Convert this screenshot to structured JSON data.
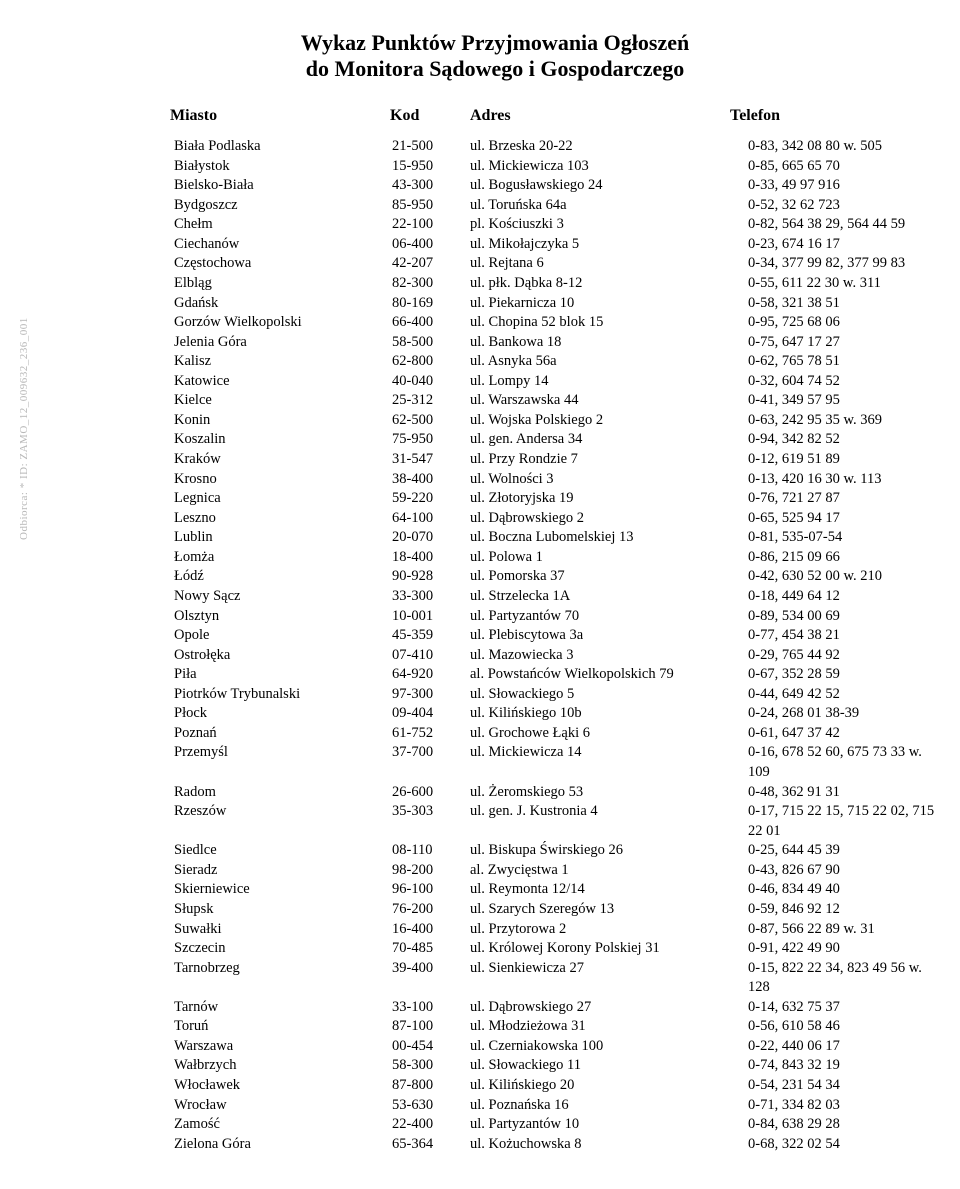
{
  "title_line1": "Wykaz Punktów Przyjmowania Ogłoszeń",
  "title_line2": "do Monitora Sądowego i Gospodarczego",
  "side_text": "Odbiorca: * ID: ZAMO_12_009632_236_001",
  "headers": {
    "city": "Miasto",
    "code": "Kod",
    "address": "Adres",
    "phone": "Telefon"
  },
  "rows": [
    {
      "city": "Biała Podlaska",
      "code": "21-500",
      "addr": "ul. Brzeska 20-22",
      "phone": "0-83, 342 08 80 w. 505"
    },
    {
      "city": "Białystok",
      "code": "15-950",
      "addr": "ul. Mickiewicza 103",
      "phone": "0-85, 665 65 70"
    },
    {
      "city": "Bielsko-Biała",
      "code": "43-300",
      "addr": "ul. Bogusławskiego 24",
      "phone": "0-33, 49 97 916"
    },
    {
      "city": "Bydgoszcz",
      "code": "85-950",
      "addr": "ul. Toruńska 64a",
      "phone": "0-52, 32 62 723"
    },
    {
      "city": "Chełm",
      "code": "22-100",
      "addr": "pl. Kościuszki 3",
      "phone": "0-82, 564 38 29, 564 44 59"
    },
    {
      "city": "Ciechanów",
      "code": "06-400",
      "addr": "ul. Mikołajczyka 5",
      "phone": "0-23, 674 16 17"
    },
    {
      "city": "Częstochowa",
      "code": "42-207",
      "addr": "ul. Rejtana 6",
      "phone": "0-34, 377 99 82, 377 99 83"
    },
    {
      "city": "Elbląg",
      "code": "82-300",
      "addr": "ul. płk. Dąbka 8-12",
      "phone": "0-55, 611 22 30 w. 311"
    },
    {
      "city": "Gdańsk",
      "code": "80-169",
      "addr": "ul. Piekarnicza 10",
      "phone": "0-58, 321 38 51"
    },
    {
      "city": "Gorzów Wielkopolski",
      "code": "66-400",
      "addr": "ul. Chopina 52 blok 15",
      "phone": "0-95, 725 68 06"
    },
    {
      "city": "Jelenia Góra",
      "code": "58-500",
      "addr": "ul. Bankowa 18",
      "phone": "0-75, 647 17 27"
    },
    {
      "city": "Kalisz",
      "code": "62-800",
      "addr": "ul. Asnyka 56a",
      "phone": "0-62, 765 78 51"
    },
    {
      "city": "Katowice",
      "code": "40-040",
      "addr": "ul. Lompy 14",
      "phone": "0-32, 604 74 52"
    },
    {
      "city": "Kielce",
      "code": "25-312",
      "addr": "ul. Warszawska 44",
      "phone": "0-41, 349 57 95"
    },
    {
      "city": "Konin",
      "code": "62-500",
      "addr": "ul. Wojska Polskiego 2",
      "phone": "0-63, 242 95 35 w. 369"
    },
    {
      "city": "Koszalin",
      "code": "75-950",
      "addr": "ul. gen. Andersa 34",
      "phone": "0-94, 342 82 52"
    },
    {
      "city": "Kraków",
      "code": "31-547",
      "addr": "ul. Przy Rondzie 7",
      "phone": "0-12, 619 51 89"
    },
    {
      "city": "Krosno",
      "code": "38-400",
      "addr": "ul. Wolności 3",
      "phone": "0-13, 420 16 30 w. 113"
    },
    {
      "city": "Legnica",
      "code": "59-220",
      "addr": "ul. Złotoryjska 19",
      "phone": "0-76, 721 27 87"
    },
    {
      "city": "Leszno",
      "code": "64-100",
      "addr": "ul. Dąbrowskiego 2",
      "phone": "0-65, 525 94 17"
    },
    {
      "city": "Lublin",
      "code": "20-070",
      "addr": "ul. Boczna Lubomelskiej 13",
      "phone": "0-81, 535-07-54"
    },
    {
      "city": "Łomża",
      "code": "18-400",
      "addr": "ul. Polowa 1",
      "phone": "0-86, 215 09 66"
    },
    {
      "city": "Łódź",
      "code": "90-928",
      "addr": "ul. Pomorska 37",
      "phone": "0-42, 630 52 00 w. 210"
    },
    {
      "city": "Nowy Sącz",
      "code": "33-300",
      "addr": "ul. Strzelecka 1A",
      "phone": "0-18, 449 64 12"
    },
    {
      "city": "Olsztyn",
      "code": "10-001",
      "addr": "ul. Partyzantów 70",
      "phone": "0-89, 534 00 69"
    },
    {
      "city": "Opole",
      "code": "45-359",
      "addr": "ul. Plebiscytowa 3a",
      "phone": "0-77, 454 38 21"
    },
    {
      "city": "Ostrołęka",
      "code": "07-410",
      "addr": "ul. Mazowiecka 3",
      "phone": "0-29, 765 44 92"
    },
    {
      "city": "Piła",
      "code": "64-920",
      "addr": "al. Powstańców Wielkopolskich 79",
      "phone": "0-67, 352 28 59"
    },
    {
      "city": "Piotrków Trybunalski",
      "code": "97-300",
      "addr": "ul. Słowackiego 5",
      "phone": "0-44, 649 42 52"
    },
    {
      "city": "Płock",
      "code": "09-404",
      "addr": "ul. Kilińskiego 10b",
      "phone": "0-24, 268 01 38-39"
    },
    {
      "city": "Poznań",
      "code": "61-752",
      "addr": "ul. Grochowe Łąki 6",
      "phone": "0-61, 647 37 42"
    },
    {
      "city": "Przemyśl",
      "code": "37-700",
      "addr": "ul. Mickiewicza 14",
      "phone": "0-16, 678 52 60, 675 73 33 w. 109"
    },
    {
      "city": "Radom",
      "code": "26-600",
      "addr": "ul. Żeromskiego 53",
      "phone": "0-48, 362 91 31"
    },
    {
      "city": "Rzeszów",
      "code": "35-303",
      "addr": "ul. gen. J. Kustronia 4",
      "phone": "0-17, 715 22 15, 715 22 02, 715 22 01"
    },
    {
      "city": "Siedlce",
      "code": "08-110",
      "addr": "ul. Biskupa Świrskiego 26",
      "phone": "0-25, 644 45 39"
    },
    {
      "city": "Sieradz",
      "code": "98-200",
      "addr": "al. Zwycięstwa 1",
      "phone": "0-43, 826 67 90"
    },
    {
      "city": "Skierniewice",
      "code": "96-100",
      "addr": "ul. Reymonta 12/14",
      "phone": "0-46, 834 49 40"
    },
    {
      "city": "Słupsk",
      "code": "76-200",
      "addr": "ul. Szarych Szeregów 13",
      "phone": "0-59, 846 92 12"
    },
    {
      "city": "Suwałki",
      "code": "16-400",
      "addr": "ul. Przytorowa 2",
      "phone": "0-87, 566 22 89 w. 31"
    },
    {
      "city": "Szczecin",
      "code": "70-485",
      "addr": "ul. Królowej Korony Polskiej 31",
      "phone": "0-91, 422 49 90"
    },
    {
      "city": "Tarnobrzeg",
      "code": "39-400",
      "addr": "ul. Sienkiewicza 27",
      "phone": "0-15, 822 22 34, 823 49 56 w. 128"
    },
    {
      "city": "Tarnów",
      "code": "33-100",
      "addr": "ul. Dąbrowskiego 27",
      "phone": "0-14, 632 75 37"
    },
    {
      "city": "Toruń",
      "code": "87-100",
      "addr": "ul. Młodzieżowa 31",
      "phone": "0-56, 610 58 46"
    },
    {
      "city": "Warszawa",
      "code": "00-454",
      "addr": "ul. Czerniakowska 100",
      "phone": "0-22, 440 06 17"
    },
    {
      "city": "Wałbrzych",
      "code": "58-300",
      "addr": "ul. Słowackiego 11",
      "phone": "0-74, 843 32 19"
    },
    {
      "city": "Włocławek",
      "code": "87-800",
      "addr": "ul. Kilińskiego 20",
      "phone": "0-54, 231 54 34"
    },
    {
      "city": "Wrocław",
      "code": "53-630",
      "addr": "ul. Poznańska 16",
      "phone": "0-71, 334 82 03"
    },
    {
      "city": "Zamość",
      "code": "22-400",
      "addr": "ul. Partyzantów 10",
      "phone": "0-84, 638 29 28"
    },
    {
      "city": "Zielona Góra",
      "code": "65-364",
      "addr": "ul. Kożuchowska 8",
      "phone": "0-68, 322 02 54"
    }
  ]
}
